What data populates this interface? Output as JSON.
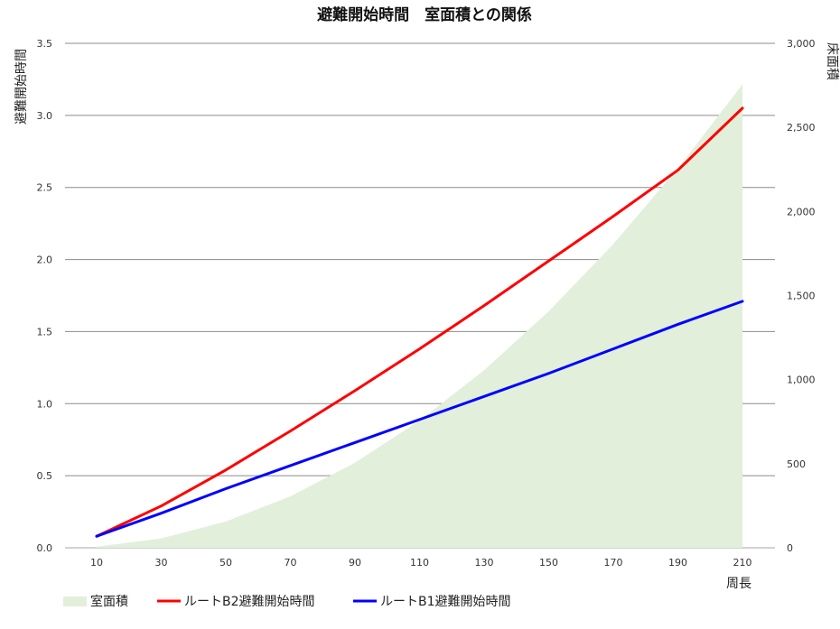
{
  "chart_data": {
    "type": "line",
    "title": "避難開始時間　室面積との関係",
    "xlabel": "周長",
    "ylabel_left": "避難開始時間",
    "ylabel_right": "床面積",
    "x": [
      10,
      30,
      50,
      70,
      90,
      110,
      130,
      150,
      170,
      190,
      210
    ],
    "x_tick_labels": [
      "10",
      "30",
      "50",
      "70",
      "90",
      "110",
      "130",
      "150",
      "170",
      "190",
      "210"
    ],
    "ylim_left": [
      0,
      3.5
    ],
    "y_left_ticks": [
      "0.0",
      "0.5",
      "1.0",
      "1.5",
      "2.0",
      "2.5",
      "3.0",
      "3.5"
    ],
    "ylim_right": [
      0,
      3000
    ],
    "y_right_ticks": [
      "0",
      "500",
      "1,000",
      "1,500",
      "2,000",
      "2,500",
      "3,000"
    ],
    "grid": true,
    "legend_position": "bottom-left",
    "series": [
      {
        "name": "室面積",
        "kind": "area",
        "axis": "right",
        "color": "#e2efda",
        "values": [
          6,
          56,
          156,
          306,
          506,
          756,
          1056,
          1406,
          1806,
          2256,
          2756
        ]
      },
      {
        "name": "ルートB2避難開始時間",
        "kind": "line",
        "axis": "left",
        "color": "#ff0000",
        "values": [
          0.08,
          0.29,
          0.54,
          0.81,
          1.09,
          1.38,
          1.68,
          1.99,
          2.3,
          2.62,
          3.05
        ]
      },
      {
        "name": "ルートB1避難開始時間",
        "kind": "line",
        "axis": "left",
        "color": "#0000ff",
        "values": [
          0.08,
          0.24,
          0.41,
          0.57,
          0.73,
          0.89,
          1.05,
          1.21,
          1.38,
          1.55,
          1.71
        ]
      }
    ]
  }
}
